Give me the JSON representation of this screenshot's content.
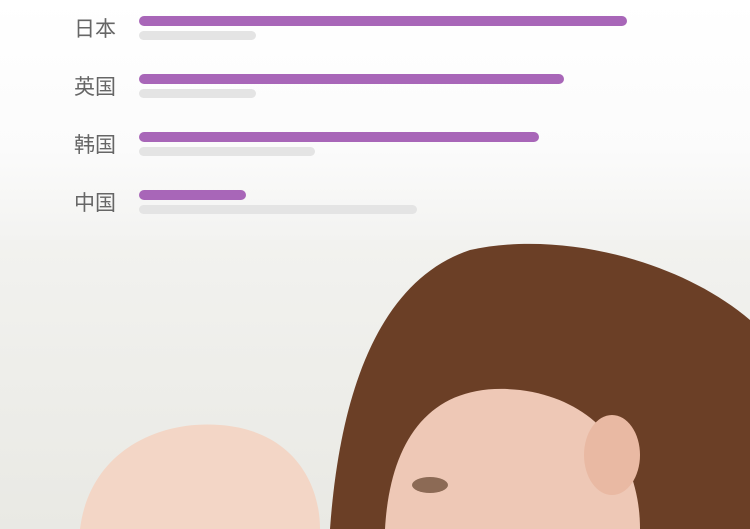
{
  "chart_data": {
    "type": "bar",
    "orientation": "horizontal",
    "categories": [
      "日本",
      "英国",
      "韩国",
      "中国"
    ],
    "series": [
      {
        "values": [
          100,
          87,
          82,
          22
        ],
        "color": "#a866b8"
      },
      {
        "values": [
          24,
          24,
          36,
          57
        ],
        "color": "#e4e4e4"
      }
    ],
    "xlim": [
      0,
      100
    ],
    "grid": false,
    "legend": "none"
  },
  "photo": {
    "subject": "mother-and-baby-photo"
  }
}
